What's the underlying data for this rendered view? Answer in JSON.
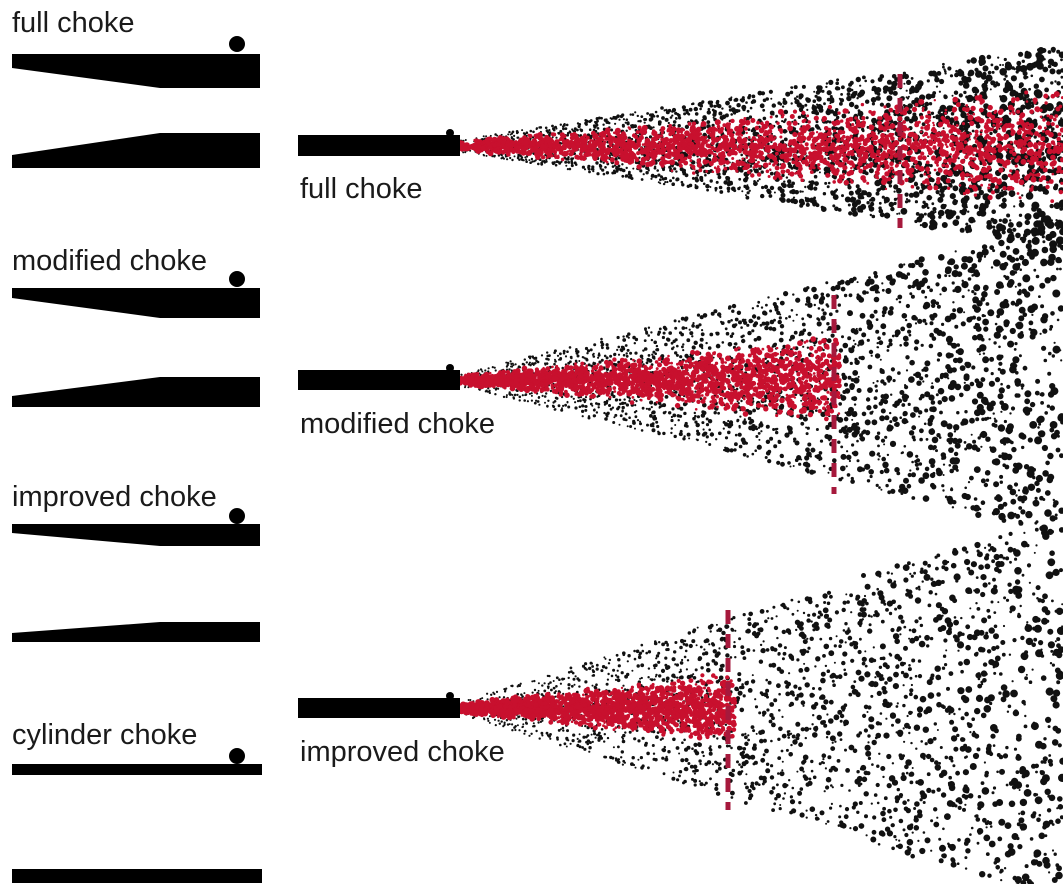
{
  "colors": {
    "barrel": "#000000",
    "shot_pattern": "#c8102e",
    "pellet": "#111111",
    "range_marker": "#a6193c",
    "background": "#ffffff"
  },
  "chokes": [
    {
      "name": "full",
      "label": "full choke"
    },
    {
      "name": "modified",
      "label": "modified choke"
    },
    {
      "name": "improved",
      "label": "improved choke"
    },
    {
      "name": "cylinder",
      "label": "cylinder choke"
    }
  ],
  "patterns": [
    {
      "name": "full",
      "label": "full choke",
      "relative_spread": 1.0
    },
    {
      "name": "modified",
      "label": "modified choke",
      "relative_spread": 1.6
    },
    {
      "name": "improved",
      "label": "improved choke",
      "relative_spread": 2.3
    }
  ],
  "icons": {
    "bead": "front-sight-bead-icon",
    "marker": "effective-range-marker"
  }
}
